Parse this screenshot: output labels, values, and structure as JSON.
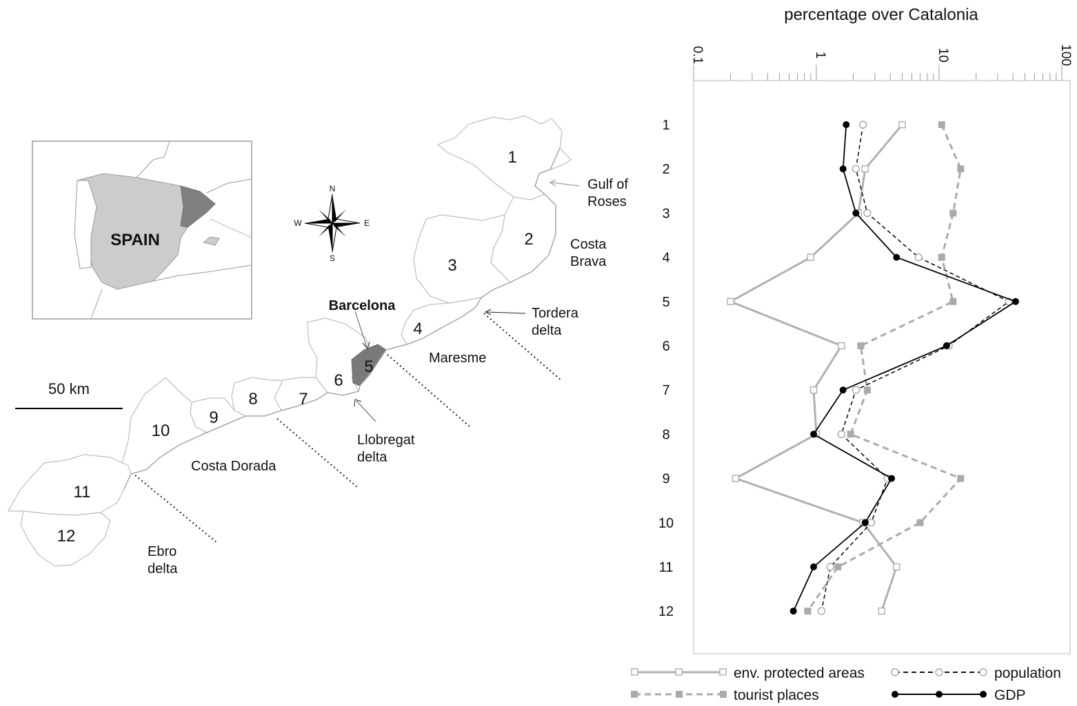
{
  "map": {
    "inset_country": "SPAIN",
    "scale_label": "50 km",
    "compass": {
      "n": "N",
      "s": "S",
      "e": "E",
      "w": "W"
    },
    "city": "Barcelona",
    "regions": [
      "1",
      "2",
      "3",
      "4",
      "5",
      "6",
      "7",
      "8",
      "9",
      "10",
      "11",
      "12"
    ],
    "places": [
      {
        "line1": "Gulf of",
        "line2": "Roses"
      },
      {
        "line1": "Costa",
        "line2": "Brava"
      },
      {
        "line1": "Tordera",
        "line2": "delta"
      },
      {
        "line1": "Maresme",
        "line2": ""
      },
      {
        "line1": "Llobregat",
        "line2": "delta"
      },
      {
        "line1": "Costa Dorada",
        "line2": ""
      },
      {
        "line1": "Ebro",
        "line2": "delta"
      }
    ],
    "colors": {
      "spain": "#cccccc",
      "catalonia": "#808080",
      "barcelona": "#7a7a7a",
      "outline": "#bdbdbd"
    }
  },
  "chart_data": {
    "type": "line",
    "title": "percentage over Catalonia",
    "x_scale": "log",
    "xlim": [
      0.1,
      100
    ],
    "x_ticks": [
      "0.1",
      "1",
      "10",
      "100"
    ],
    "y_categories": [
      "1",
      "2",
      "3",
      "4",
      "5",
      "6",
      "7",
      "8",
      "9",
      "10",
      "11",
      "12"
    ],
    "orientation": "horizontal-values, vertical-categories",
    "series": [
      {
        "name": "env. protected areas",
        "color": "#b0b0b0",
        "style": "solid",
        "marker": "open-square",
        "values": [
          5,
          2.5,
          2.2,
          0.9,
          0.2,
          1.6,
          0.95,
          1.0,
          0.22,
          2.4,
          4.5,
          3.4
        ]
      },
      {
        "name": "population",
        "color": "#111111",
        "style": "dashed",
        "marker": "open-circle",
        "values": [
          2.4,
          2.1,
          2.6,
          6.8,
          37,
          12,
          2.1,
          1.6,
          3.8,
          2.8,
          1.3,
          1.1
        ]
      },
      {
        "name": "tourist places",
        "color": "#aaaaaa",
        "style": "dashed",
        "marker": "filled-square",
        "values": [
          10.5,
          15,
          13,
          10.5,
          13,
          2.3,
          2.6,
          1.9,
          15,
          7,
          1.5,
          0.85
        ]
      },
      {
        "name": "GDP",
        "color": "#000000",
        "style": "solid",
        "marker": "filled-circle",
        "values": [
          1.75,
          1.65,
          2.1,
          4.5,
          42,
          11.5,
          1.65,
          0.95,
          4.1,
          2.5,
          0.95,
          0.65
        ]
      }
    ]
  }
}
